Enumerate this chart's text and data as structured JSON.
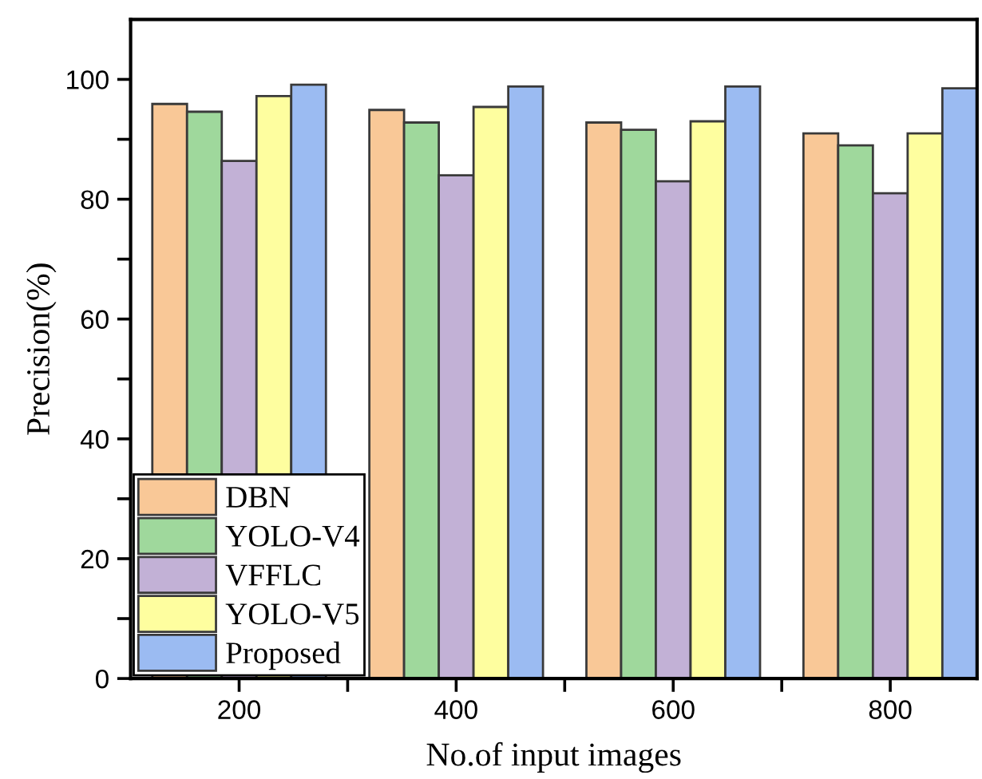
{
  "chart_data": {
    "type": "bar",
    "xlabel": "No.of input images",
    "ylabel": "Precision(%)",
    "x": [
      200,
      400,
      600,
      800
    ],
    "xlim": [
      100,
      880
    ],
    "xticks": [
      200,
      {
        "value": 300,
        "label": null
      },
      400,
      {
        "value": 500,
        "label": null
      },
      600,
      {
        "value": 700,
        "label": null
      },
      800
    ],
    "ylim": [
      0,
      110
    ],
    "yticks": [
      0,
      {
        "value": 10,
        "label": null
      },
      20,
      {
        "value": 30,
        "label": null
      },
      40,
      {
        "value": 50,
        "label": null
      },
      60,
      {
        "value": 70,
        "label": null
      },
      80,
      {
        "value": 90,
        "label": null
      },
      100
    ],
    "grid": false,
    "legend": "bottom left",
    "series": [
      {
        "name": "DBN",
        "color": "#f9c897",
        "values": [
          95.9,
          94.9,
          92.8,
          91.0
        ]
      },
      {
        "name": "YOLO-V4",
        "color": "#9fd89c",
        "values": [
          94.6,
          92.8,
          91.6,
          89.0
        ]
      },
      {
        "name": "VFFLC",
        "color": "#c2b1d6",
        "values": [
          86.4,
          84.0,
          83.0,
          81.0
        ]
      },
      {
        "name": "YOLO-V5",
        "color": "#fefe9f",
        "values": [
          97.2,
          95.4,
          93.0,
          91.0
        ]
      },
      {
        "name": "Proposed",
        "color": "#9bbbf2",
        "values": [
          99.1,
          98.8,
          98.8,
          98.5
        ]
      }
    ]
  }
}
